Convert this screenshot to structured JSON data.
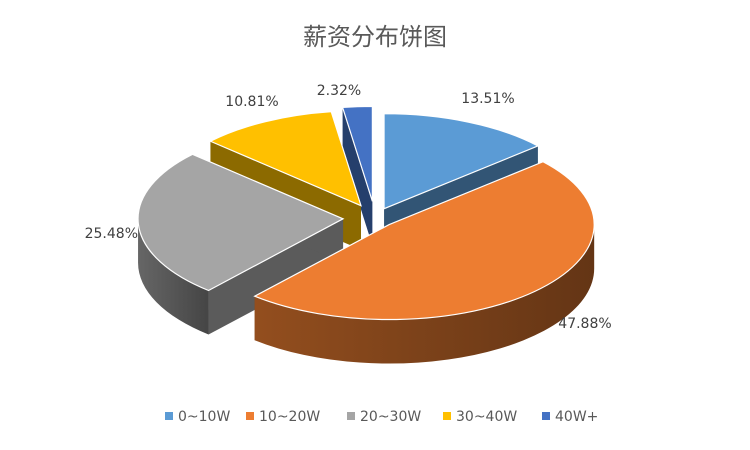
{
  "chart_data": {
    "type": "pie",
    "title": "薪资分布饼图",
    "categories": [
      "0~10W",
      "10~20W",
      "20~30W",
      "30~40W",
      "40W+"
    ],
    "values": [
      13.51,
      47.88,
      25.48,
      10.81,
      2.32
    ],
    "labels": [
      "13.51%",
      "47.88%",
      "25.48%",
      "10.81%",
      "2.32%"
    ],
    "colors": [
      "#5B9BD5",
      "#ED7D31",
      "#A5A5A5",
      "#FFC000",
      "#4472C4"
    ],
    "style": "3d-exploded",
    "legend": "bottom"
  }
}
